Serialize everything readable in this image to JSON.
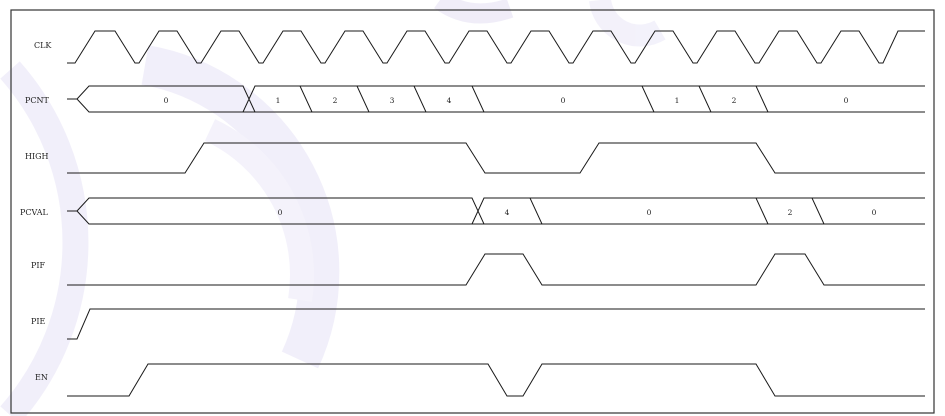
{
  "diagram": {
    "signals": [
      {
        "name": "CLK"
      },
      {
        "name": "PCNT",
        "values": [
          "0",
          "1",
          "2",
          "3",
          "4",
          "0",
          "1",
          "2",
          "0"
        ]
      },
      {
        "name": "HIGH"
      },
      {
        "name": "PCVAL",
        "values": [
          "0",
          "4",
          "0",
          "2",
          "0"
        ]
      },
      {
        "name": "PIF"
      },
      {
        "name": "PIE"
      },
      {
        "name": "EN"
      }
    ]
  }
}
